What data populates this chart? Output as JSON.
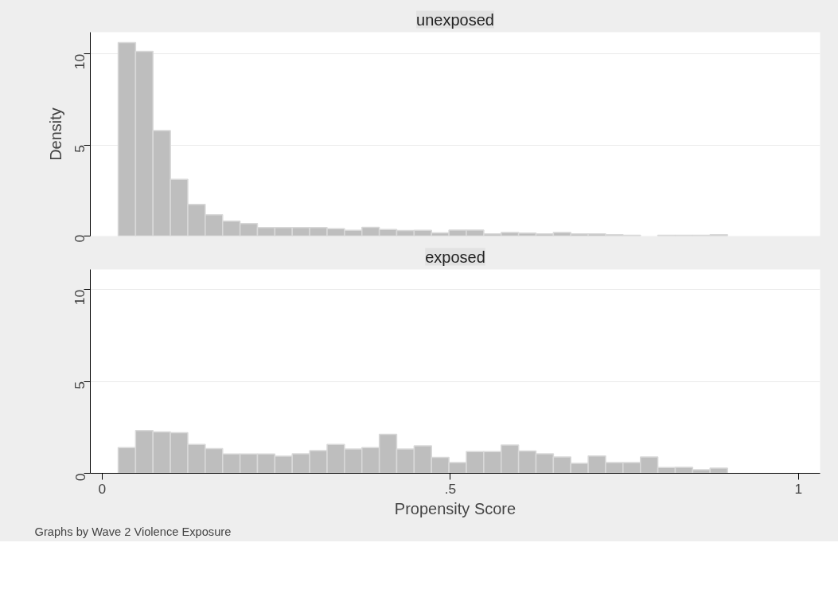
{
  "chart_data": [
    {
      "type": "histogram",
      "title": "unexposed",
      "ylabel": "Density",
      "color": "#bebebe",
      "bins": [
        0.023,
        0.048,
        0.073,
        0.098,
        0.123,
        0.148,
        0.173,
        0.198,
        0.223,
        0.248,
        0.273,
        0.298,
        0.323,
        0.348,
        0.373,
        0.398,
        0.423,
        0.448,
        0.473,
        0.498,
        0.523,
        0.548,
        0.573,
        0.598,
        0.623,
        0.648,
        0.673,
        0.698,
        0.723,
        0.748,
        0.773,
        0.798,
        0.823,
        0.848,
        0.873,
        0.898
      ],
      "values": [
        10.63,
        10.15,
        5.8,
        3.12,
        1.74,
        1.17,
        0.82,
        0.69,
        0.47,
        0.47,
        0.47,
        0.47,
        0.41,
        0.32,
        0.48,
        0.36,
        0.31,
        0.32,
        0.18,
        0.33,
        0.33,
        0.12,
        0.2,
        0.16,
        0.12,
        0.2,
        0.12,
        0.12,
        0.08,
        0.04,
        0,
        0.04,
        0.04,
        0.04,
        0.08
      ],
      "xlim": [
        -0.017,
        1.031
      ],
      "ylim": [
        0,
        11.2
      ],
      "yticks": [
        0,
        5,
        10
      ],
      "grid": "y",
      "tick_labels": "y"
    },
    {
      "type": "histogram",
      "title": "exposed",
      "xlabel": "Propensity Score",
      "color": "#bebebe",
      "annotations": [
        "Graphs by Wave 2 Violence Exposure"
      ],
      "bins": [
        0.023,
        0.048,
        0.073,
        0.098,
        0.123,
        0.148,
        0.173,
        0.198,
        0.223,
        0.248,
        0.273,
        0.298,
        0.323,
        0.348,
        0.373,
        0.398,
        0.423,
        0.448,
        0.473,
        0.498,
        0.523,
        0.548,
        0.573,
        0.598,
        0.623,
        0.648,
        0.673,
        0.698,
        0.723,
        0.748,
        0.773,
        0.798,
        0.823,
        0.848,
        0.873,
        0.898
      ],
      "values": [
        1.4,
        2.33,
        2.25,
        2.21,
        1.57,
        1.34,
        1.05,
        1.05,
        1.05,
        0.93,
        1.06,
        1.24,
        1.57,
        1.32,
        1.4,
        2.12,
        1.32,
        1.5,
        0.87,
        0.58,
        1.18,
        1.18,
        1.54,
        1.21,
        1.06,
        0.89,
        0.54,
        0.94,
        0.58,
        0.58,
        0.89,
        0.31,
        0.32,
        0.2,
        0.28
      ],
      "xlim": [
        -0.017,
        1.031
      ],
      "ylim": [
        0,
        11.1
      ],
      "xticks": [
        0,
        {
          "value": 0.5,
          "label": ".5"
        },
        1
      ],
      "yticks": [
        0,
        5,
        10
      ],
      "grid": "y"
    }
  ]
}
